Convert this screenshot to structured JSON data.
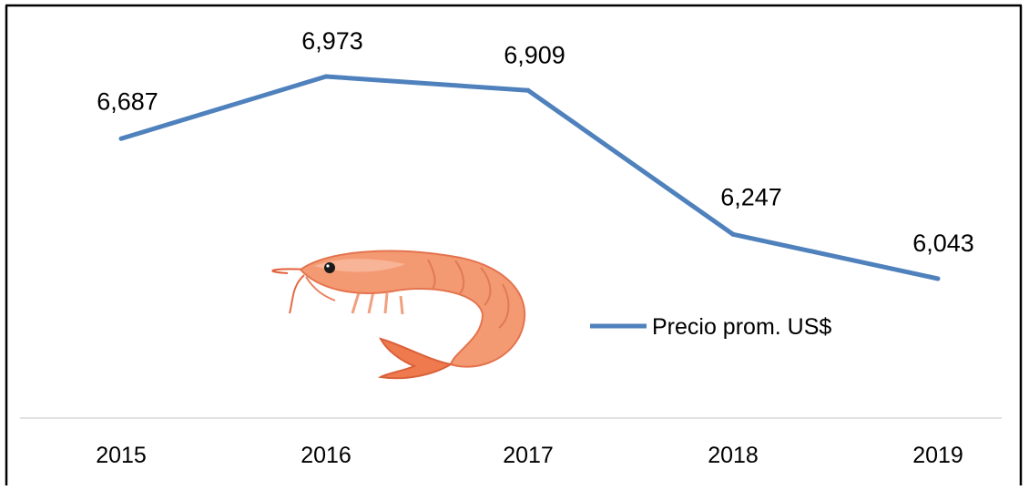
{
  "chart_data": {
    "type": "line",
    "categories": [
      "2015",
      "2016",
      "2017",
      "2018",
      "2019"
    ],
    "series": [
      {
        "name": "Precio prom. US$",
        "values": [
          6.687,
          6.973,
          6.909,
          6.247,
          6.043
        ],
        "labels": [
          "6,687",
          "6,973",
          "6,909",
          "6,247",
          "6,043"
        ],
        "color": "#4f81bd"
      }
    ],
    "title": "",
    "xlabel": "",
    "ylabel": "",
    "legend_position": "right-center",
    "grid": false
  },
  "decoration": {
    "icon": "shrimp-icon"
  }
}
